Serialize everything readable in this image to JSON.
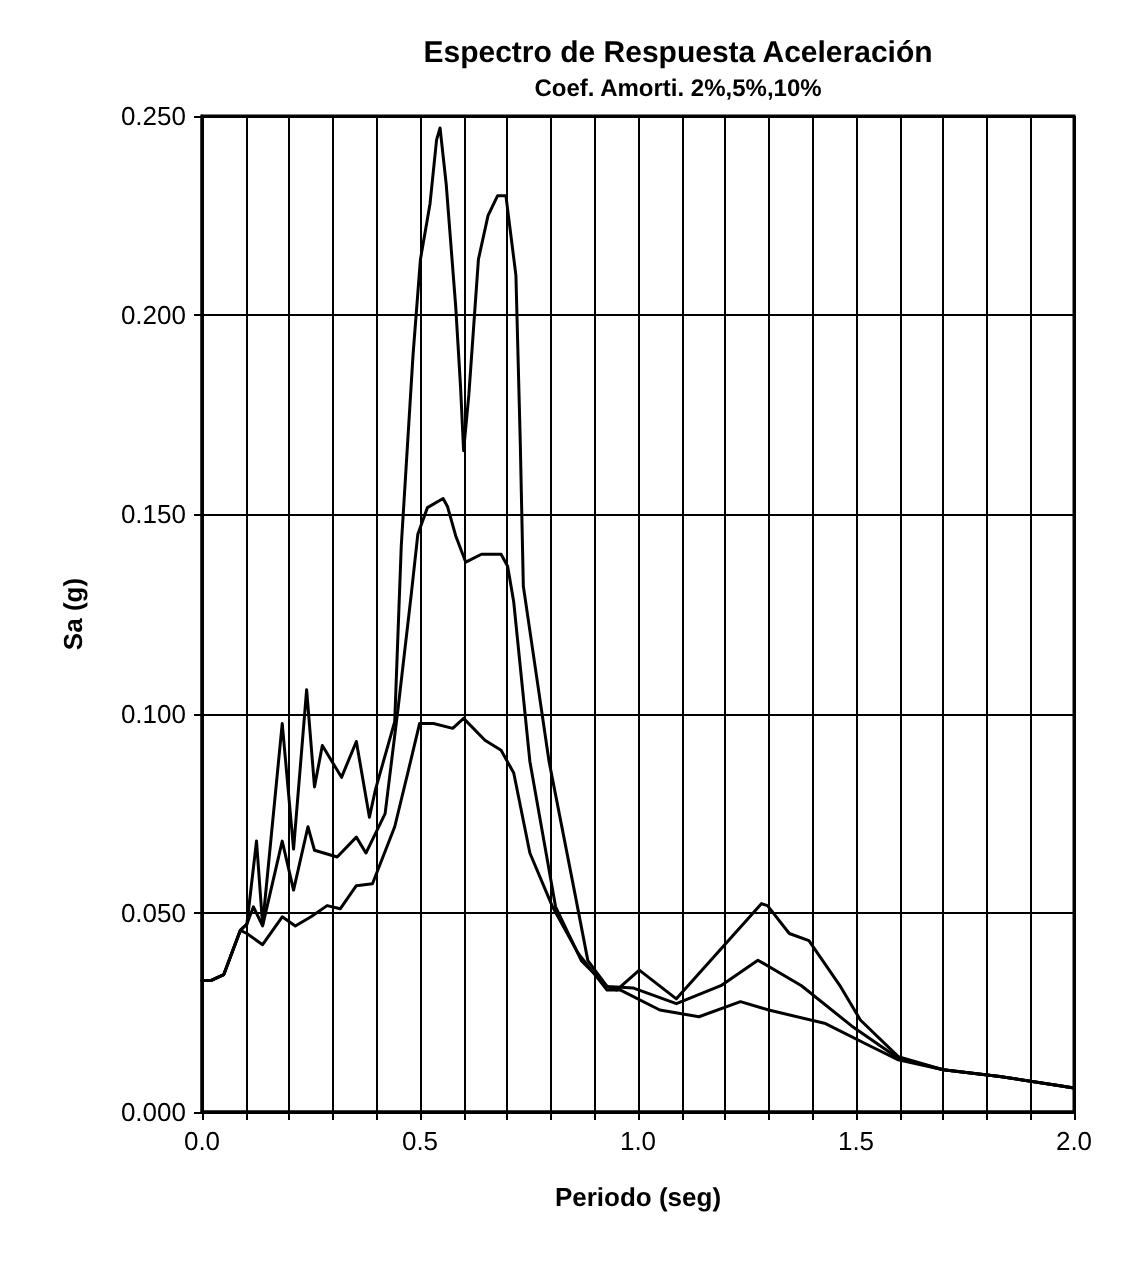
{
  "chart_data": {
    "type": "line",
    "title": "Espectro de Respuesta Aceleración",
    "subtitle": "Coef. Amorti. 2%,5%,10%",
    "xlabel": "Periodo (seg)",
    "ylabel": "Sa (g)",
    "xlim": [
      0,
      2
    ],
    "ylim": [
      0,
      0.25
    ],
    "xticks": [
      {
        "value": 0,
        "label": "0.0"
      },
      {
        "value": 0.1,
        "label": null
      },
      {
        "value": 0.2,
        "label": null
      },
      {
        "value": 0.3,
        "label": null
      },
      {
        "value": 0.4,
        "label": null
      },
      {
        "value": 0.5,
        "label": "0.5"
      },
      {
        "value": 0.6,
        "label": null
      },
      {
        "value": 0.7,
        "label": null
      },
      {
        "value": 0.8,
        "label": null
      },
      {
        "value": 0.9,
        "label": null
      },
      {
        "value": 1,
        "label": "1.0"
      },
      {
        "value": 1.1,
        "label": null
      },
      {
        "value": 1.2,
        "label": null
      },
      {
        "value": 1.3,
        "label": null
      },
      {
        "value": 1.4,
        "label": null
      },
      {
        "value": 1.5,
        "label": "1.5"
      },
      {
        "value": 1.6,
        "label": null
      },
      {
        "value": 1.7,
        "label": null
      },
      {
        "value": 1.8,
        "label": null
      },
      {
        "value": 1.9,
        "label": null
      },
      {
        "value": 2,
        "label": "2.0"
      }
    ],
    "yticks": [
      {
        "value": 0,
        "label": "0.000"
      },
      {
        "value": 0.05,
        "label": "0.050"
      },
      {
        "value": 0.1,
        "label": "0.100"
      },
      {
        "value": 0.15,
        "label": "0.150"
      },
      {
        "value": 0.2,
        "label": "0.200"
      },
      {
        "value": 0.25,
        "label": "0.250"
      }
    ],
    "grid": true,
    "marker": "none",
    "line_style": "solid",
    "series": [
      {
        "color": "#000000",
        "x": [
          0,
          0.02,
          0.05,
          0.088,
          0.103,
          0.125,
          0.139,
          0.184,
          0.21,
          0.24,
          0.258,
          0.276,
          0.32,
          0.354,
          0.384,
          0.398,
          0.442,
          0.457,
          0.484,
          0.501,
          0.523,
          0.538,
          0.546,
          0.56,
          0.582,
          0.593,
          0.6,
          0.612,
          0.634,
          0.656,
          0.678,
          0.697,
          0.72,
          0.73,
          0.737,
          0.796,
          0.855,
          0.885,
          0.929,
          0.951,
          1.003,
          1.088,
          1.283,
          1.297,
          1.347,
          1.392,
          1.465,
          1.51,
          1.597,
          1.7,
          1.83,
          1.96,
          2.0
        ],
        "values": [
          0.033,
          0.033,
          0.0345,
          0.0456,
          0.0472,
          0.068,
          0.047,
          0.0975,
          0.066,
          0.106,
          0.0816,
          0.092,
          0.084,
          0.093,
          0.074,
          0.081,
          0.098,
          0.142,
          0.19,
          0.214,
          0.228,
          0.244,
          0.247,
          0.233,
          0.202,
          0.182,
          0.166,
          0.18,
          0.214,
          0.225,
          0.23,
          0.23,
          0.21,
          0.168,
          0.132,
          0.088,
          0.055,
          0.038,
          0.0315,
          0.0306,
          0.0356,
          0.0284,
          0.0523,
          0.0518,
          0.0448,
          0.043,
          0.0314,
          0.0231,
          0.0139,
          0.0106,
          0.0089,
          0.0067,
          0.006
        ]
      },
      {
        "color": "#000000",
        "x": [
          0,
          0.02,
          0.05,
          0.088,
          0.103,
          0.118,
          0.139,
          0.184,
          0.21,
          0.243,
          0.258,
          0.31,
          0.354,
          0.376,
          0.42,
          0.45,
          0.48,
          0.495,
          0.517,
          0.553,
          0.563,
          0.582,
          0.605,
          0.641,
          0.686,
          0.701,
          0.715,
          0.752,
          0.811,
          0.87,
          0.929,
          0.99,
          1.088,
          1.19,
          1.275,
          1.375,
          1.49,
          1.597,
          1.7,
          1.83,
          1.96,
          2.0
        ],
        "values": [
          0.033,
          0.033,
          0.0345,
          0.0456,
          0.0472,
          0.0515,
          0.0467,
          0.068,
          0.0557,
          0.0716,
          0.0657,
          0.064,
          0.069,
          0.065,
          0.0749,
          0.1016,
          0.13,
          0.145,
          0.1517,
          0.154,
          0.152,
          0.1446,
          0.138,
          0.14,
          0.14,
          0.137,
          0.128,
          0.088,
          0.0515,
          0.038,
          0.0315,
          0.0311,
          0.0272,
          0.0317,
          0.0381,
          0.0317,
          0.0216,
          0.0135,
          0.0106,
          0.0089,
          0.0067,
          0.006
        ]
      },
      {
        "color": "#000000",
        "x": [
          0,
          0.02,
          0.05,
          0.088,
          0.103,
          0.139,
          0.184,
          0.214,
          0.25,
          0.287,
          0.317,
          0.354,
          0.391,
          0.442,
          0.472,
          0.499,
          0.531,
          0.575,
          0.6,
          0.649,
          0.686,
          0.715,
          0.752,
          0.804,
          0.863,
          0.929,
          0.96,
          1.05,
          1.14,
          1.235,
          1.3,
          1.43,
          1.53,
          1.597,
          1.7,
          1.83,
          1.96,
          2.0
        ],
        "values": [
          0.033,
          0.033,
          0.0345,
          0.0456,
          0.0448,
          0.042,
          0.049,
          0.0467,
          0.049,
          0.0518,
          0.051,
          0.0568,
          0.0573,
          0.0716,
          0.0851,
          0.0975,
          0.0975,
          0.0963,
          0.0988,
          0.0933,
          0.0908,
          0.0851,
          0.065,
          0.0515,
          0.0398,
          0.0306,
          0.0306,
          0.0256,
          0.0239,
          0.0277,
          0.0256,
          0.0222,
          0.0167,
          0.0131,
          0.0106,
          0.0089,
          0.0067,
          0.006
        ]
      }
    ]
  }
}
